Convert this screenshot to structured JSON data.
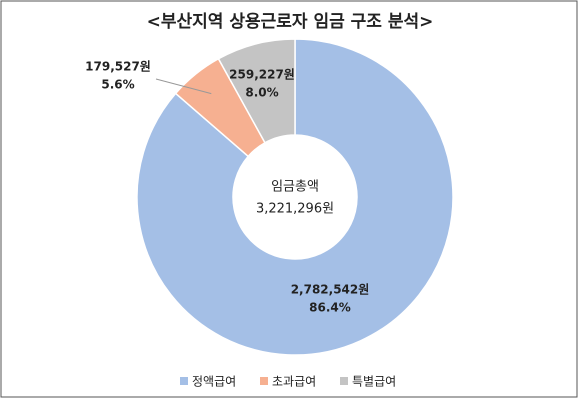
{
  "chart_data": {
    "type": "donut",
    "title": "<부산지역 상용근로자 임금 구조 분석>",
    "categories": [
      "정액급여",
      "초과급여",
      "특별급여"
    ],
    "values": [
      2782542,
      179527,
      259227
    ],
    "value_labels": [
      "2,782,542원",
      "179,527원",
      "259,227원"
    ],
    "percent": {
      "values": [
        86.4,
        5.6,
        8.0
      ],
      "value_labels": [
        "86.4%",
        "5.6%",
        "8.0%"
      ]
    },
    "colors": [
      "#a4bfe6",
      "#f6b091",
      "#c4c4c4"
    ],
    "total": {
      "label": "임금총액",
      "value": 3221296,
      "value_label": "3,221,296원"
    },
    "legend": "bottom"
  }
}
